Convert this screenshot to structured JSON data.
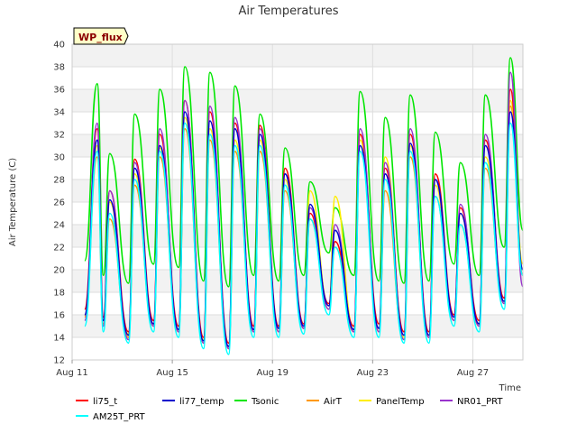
{
  "chart_data": {
    "type": "line",
    "title": "Air Temperatures",
    "xlabel": "Time",
    "ylabel": "Air Temperature (C)",
    "badge": "WP_flux",
    "x_range": [
      "2023-08-11",
      "2023-08-29"
    ],
    "x_ticks": [
      {
        "date": "2023-08-11",
        "label": "Aug 11"
      },
      {
        "date": "2023-08-15",
        "label": "Aug 15"
      },
      {
        "date": "2023-08-19",
        "label": "Aug 19"
      },
      {
        "date": "2023-08-23",
        "label": "Aug 23"
      },
      {
        "date": "2023-08-27",
        "label": "Aug 27"
      }
    ],
    "ylim": [
      12,
      40
    ],
    "y_ticks": [
      12,
      14,
      16,
      18,
      20,
      22,
      24,
      26,
      28,
      30,
      32,
      34,
      36,
      38,
      40
    ],
    "grid": true,
    "legend_position": "bottom",
    "x": [
      "2023-08-11 12:00",
      "2023-08-12 00:00",
      "2023-08-12 06:00",
      "2023-08-12 12:00",
      "2023-08-13 06:00",
      "2023-08-13 12:00",
      "2023-08-14 06:00",
      "2023-08-14 12:00",
      "2023-08-15 06:00",
      "2023-08-15 12:00",
      "2023-08-16 06:00",
      "2023-08-16 12:00",
      "2023-08-17 06:00",
      "2023-08-17 12:00",
      "2023-08-18 06:00",
      "2023-08-18 12:00",
      "2023-08-19 06:00",
      "2023-08-19 12:00",
      "2023-08-20 06:00",
      "2023-08-20 12:00",
      "2023-08-21 06:00",
      "2023-08-21 12:00",
      "2023-08-22 06:00",
      "2023-08-22 12:00",
      "2023-08-23 06:00",
      "2023-08-23 12:00",
      "2023-08-24 06:00",
      "2023-08-24 12:00",
      "2023-08-25 06:00",
      "2023-08-25 12:00",
      "2023-08-26 06:00",
      "2023-08-26 12:00",
      "2023-08-27 06:00",
      "2023-08-27 12:00",
      "2023-08-28 06:00",
      "2023-08-28 12:00",
      "2023-08-29 00:00"
    ],
    "series": [
      {
        "name": "li75_t",
        "color": "#ff0000",
        "values": [
          16.5,
          32.5,
          15.8,
          27.0,
          14.5,
          29.8,
          15.5,
          32.0,
          15.0,
          35.0,
          14.0,
          34.0,
          13.5,
          33.0,
          15.0,
          32.8,
          15.0,
          29.0,
          15.2,
          25.0,
          17.0,
          22.5,
          15.0,
          32.0,
          15.2,
          29.0,
          14.5,
          32.0,
          14.5,
          28.5,
          16.0,
          25.5,
          15.5,
          31.5,
          17.5,
          36.0,
          19.5
        ]
      },
      {
        "name": "li77_temp",
        "color": "#0000cc",
        "values": [
          16.0,
          31.5,
          15.5,
          26.2,
          14.2,
          29.0,
          15.2,
          31.0,
          14.7,
          34.0,
          13.7,
          33.2,
          13.2,
          32.5,
          14.7,
          32.0,
          14.8,
          28.5,
          15.0,
          25.8,
          16.8,
          23.5,
          14.7,
          31.0,
          14.8,
          28.5,
          14.2,
          31.2,
          14.2,
          28.0,
          15.8,
          25.0,
          15.2,
          31.0,
          17.2,
          34.0,
          20.0
        ]
      },
      {
        "name": "Tsonic",
        "color": "#00e600",
        "values": [
          20.8,
          36.5,
          19.5,
          30.3,
          18.8,
          33.8,
          20.5,
          36.0,
          20.2,
          38.0,
          19.0,
          37.5,
          18.5,
          36.3,
          19.5,
          33.8,
          19.0,
          30.8,
          19.5,
          27.8,
          21.5,
          25.5,
          19.5,
          35.8,
          19.0,
          33.5,
          18.8,
          35.5,
          19.0,
          32.2,
          20.5,
          29.5,
          19.5,
          35.5,
          22.0,
          38.8,
          23.5
        ]
      },
      {
        "name": "AirT",
        "color": "#ff9900",
        "values": [
          15.8,
          30.0,
          15.2,
          24.5,
          14.0,
          27.5,
          15.0,
          30.0,
          14.5,
          32.5,
          13.5,
          31.5,
          13.0,
          30.5,
          14.5,
          30.5,
          14.5,
          27.0,
          14.8,
          24.5,
          16.5,
          22.0,
          14.5,
          32.0,
          14.5,
          27.0,
          13.8,
          30.0,
          14.0,
          26.5,
          15.5,
          24.0,
          15.0,
          29.0,
          17.0,
          34.5,
          20.0
        ]
      },
      {
        "name": "PanelTemp",
        "color": "#ffee00",
        "values": [
          16.0,
          31.0,
          15.5,
          26.0,
          14.3,
          28.5,
          15.2,
          30.8,
          14.7,
          33.5,
          13.8,
          32.5,
          13.2,
          31.5,
          14.7,
          31.5,
          14.8,
          28.0,
          15.0,
          27.0,
          16.8,
          26.5,
          14.7,
          31.5,
          14.8,
          30.0,
          14.0,
          31.0,
          14.2,
          27.5,
          15.8,
          25.0,
          15.2,
          30.0,
          17.2,
          35.0,
          20.5
        ]
      },
      {
        "name": "NR01_PRT",
        "color": "#9933cc",
        "values": [
          15.5,
          33.0,
          15.0,
          27.0,
          13.8,
          29.5,
          15.0,
          32.5,
          14.5,
          35.0,
          13.5,
          34.5,
          13.0,
          33.5,
          14.5,
          32.5,
          14.5,
          28.5,
          14.8,
          25.5,
          16.5,
          24.0,
          14.5,
          32.5,
          14.5,
          29.5,
          13.8,
          32.5,
          14.0,
          28.0,
          15.5,
          25.8,
          15.0,
          32.0,
          17.0,
          37.5,
          18.5
        ]
      },
      {
        "name": "AM25T_PRT",
        "color": "#00ffff",
        "values": [
          15.0,
          30.5,
          14.5,
          25.0,
          13.5,
          28.0,
          14.5,
          30.5,
          14.0,
          33.0,
          13.0,
          32.0,
          12.5,
          31.0,
          14.0,
          31.0,
          14.0,
          27.5,
          14.3,
          24.5,
          16.0,
          22.0,
          14.0,
          30.5,
          14.0,
          28.0,
          13.5,
          30.5,
          13.5,
          26.5,
          15.0,
          24.0,
          14.5,
          29.5,
          16.5,
          33.0,
          19.5
        ]
      }
    ]
  }
}
